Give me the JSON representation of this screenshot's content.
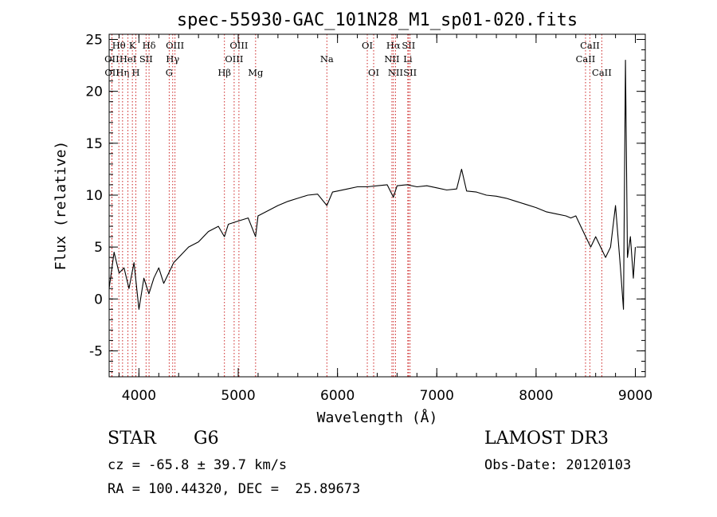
{
  "chart_data": {
    "type": "line",
    "title": "spec-55930-GAC_101N28_M1_sp01-020.fits",
    "xlabel": "Wavelength (Å)",
    "ylabel": "Flux (relative)",
    "xlim": [
      3700,
      9100
    ],
    "ylim": [
      -7.5,
      25.5
    ],
    "xticks": [
      4000,
      5000,
      6000,
      7000,
      8000,
      9000
    ],
    "yticks": [
      -5,
      0,
      5,
      10,
      15,
      20,
      25
    ],
    "grid": false,
    "line_color": "#000000",
    "line_marker_color": "#cc2222",
    "series": [
      {
        "name": "flux",
        "x": [
          3700,
          3750,
          3800,
          3850,
          3900,
          3950,
          4000,
          4050,
          4100,
          4150,
          4200,
          4250,
          4300,
          4350,
          4400,
          4450,
          4500,
          4600,
          4700,
          4800,
          4861,
          4900,
          5000,
          5100,
          5175,
          5200,
          5300,
          5400,
          5500,
          5600,
          5700,
          5800,
          5893,
          5950,
          6000,
          6100,
          6200,
          6300,
          6400,
          6500,
          6563,
          6600,
          6700,
          6800,
          6900,
          7000,
          7100,
          7200,
          7250,
          7300,
          7400,
          7500,
          7600,
          7700,
          7800,
          7900,
          8000,
          8100,
          8200,
          8300,
          8350,
          8400,
          8450,
          8500,
          8550,
          8600,
          8650,
          8700,
          8750,
          8800,
          8850,
          8880,
          8900,
          8920,
          8950,
          8980,
          9000
        ],
        "y": [
          1.0,
          4.5,
          2.5,
          3.0,
          1.0,
          3.5,
          -1.0,
          2.0,
          0.5,
          2.0,
          3.0,
          1.5,
          2.5,
          3.5,
          4.0,
          4.5,
          5.0,
          5.5,
          6.5,
          7.0,
          6.0,
          7.2,
          7.5,
          7.8,
          6.0,
          8.0,
          8.5,
          9.0,
          9.4,
          9.7,
          10.0,
          10.1,
          9.0,
          10.3,
          10.4,
          10.6,
          10.8,
          10.8,
          10.9,
          11.0,
          9.8,
          10.9,
          11.0,
          10.8,
          10.9,
          10.7,
          10.5,
          10.6,
          12.5,
          10.4,
          10.3,
          10.0,
          9.9,
          9.7,
          9.4,
          9.1,
          8.8,
          8.4,
          8.2,
          8.0,
          7.8,
          8.0,
          7.0,
          6.0,
          5.0,
          6.0,
          5.0,
          4.0,
          5.0,
          9.0,
          3.0,
          -1.0,
          23.0,
          4.0,
          6.0,
          2.0,
          5.0
        ]
      }
    ],
    "lines": [
      {
        "name": "Hθ",
        "wavelength": 3798,
        "row": 1
      },
      {
        "name": "OII",
        "wavelength": 3727,
        "row": 2
      },
      {
        "name": "OII",
        "wavelength": 3729,
        "row": 3
      },
      {
        "name": "Hη",
        "wavelength": 3835,
        "row": 3
      },
      {
        "name": "K",
        "wavelength": 3934,
        "row": 1
      },
      {
        "name": "HeI",
        "wavelength": 3889,
        "row": 2
      },
      {
        "name": "H",
        "wavelength": 3969,
        "row": 3
      },
      {
        "name": "Hδ",
        "wavelength": 4102,
        "row": 1
      },
      {
        "name": "SII",
        "wavelength": 4072,
        "row": 2
      },
      {
        "name": "OIII",
        "wavelength": 4363,
        "row": 1
      },
      {
        "name": "Hγ",
        "wavelength": 4340,
        "row": 2
      },
      {
        "name": "G",
        "wavelength": 4305,
        "row": 3
      },
      {
        "name": "OIII",
        "wavelength": 5007,
        "row": 1
      },
      {
        "name": "OIII",
        "wavelength": 4959,
        "row": 2
      },
      {
        "name": "Hβ",
        "wavelength": 4861,
        "row": 3
      },
      {
        "name": "Mg",
        "wavelength": 5175,
        "row": 3
      },
      {
        "name": "Na",
        "wavelength": 5893,
        "row": 2
      },
      {
        "name": "OI",
        "wavelength": 6300,
        "row": 1
      },
      {
        "name": "OI",
        "wavelength": 6364,
        "row": 3
      },
      {
        "name": "Hα",
        "wavelength": 6563,
        "row": 1
      },
      {
        "name": "SII",
        "wavelength": 6716,
        "row": 1
      },
      {
        "name": "NII",
        "wavelength": 6548,
        "row": 2
      },
      {
        "name": "Li",
        "wavelength": 6708,
        "row": 2
      },
      {
        "name": "NII",
        "wavelength": 6584,
        "row": 3
      },
      {
        "name": "SII",
        "wavelength": 6731,
        "row": 3
      },
      {
        "name": "CaII",
        "wavelength": 8542,
        "row": 1
      },
      {
        "name": "CaII",
        "wavelength": 8498,
        "row": 2
      },
      {
        "name": "CaII",
        "wavelength": 8662,
        "row": 3
      }
    ]
  },
  "info": {
    "class": "STAR",
    "subclass": "G6",
    "survey": "LAMOST DR3",
    "cz": "cz = -65.8 ± 39.7 km/s",
    "obs_date": "Obs-Date: 20120103",
    "coords": "RA = 100.44320, DEC =  25.89673"
  }
}
